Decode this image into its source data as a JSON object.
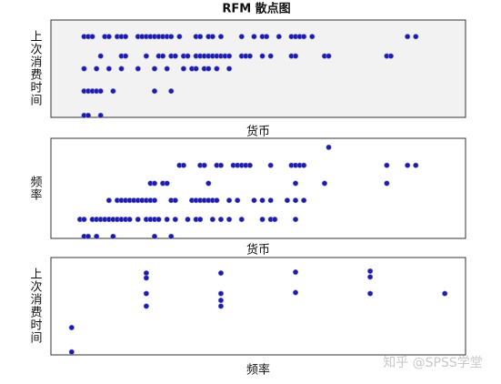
{
  "chart_data": [
    {
      "type": "scatter",
      "title": "RFM 散点图",
      "x_label": "货币",
      "y_label": "上次消费时间",
      "color": "#1c1ca8",
      "xlim": [
        0,
        100
      ],
      "ylim": [
        0,
        100
      ],
      "x": [
        8,
        9,
        10,
        13,
        14,
        16,
        17,
        18,
        21,
        22,
        23,
        24,
        25,
        26,
        27,
        28,
        29,
        31,
        35,
        36,
        38,
        39,
        41,
        46,
        49,
        51,
        52,
        55,
        58,
        59,
        60,
        61,
        63,
        86,
        88,
        12,
        17,
        18,
        23,
        26,
        27,
        29,
        30,
        32,
        33,
        35,
        36,
        37,
        38,
        39,
        40,
        41,
        42,
        43,
        46,
        47,
        48,
        51,
        53,
        58,
        59,
        66,
        67,
        81,
        82,
        8,
        11,
        14,
        17,
        21,
        25,
        28,
        32,
        34,
        35,
        37,
        38,
        40,
        43,
        8,
        9,
        10,
        11,
        12,
        15,
        25,
        29,
        8,
        9,
        12
      ],
      "y": [
        83,
        83,
        83,
        83,
        83,
        83,
        83,
        83,
        83,
        83,
        83,
        83,
        83,
        83,
        83,
        83,
        83,
        83,
        83,
        83,
        83,
        83,
        83,
        83,
        83,
        83,
        83,
        83,
        83,
        83,
        83,
        83,
        83,
        83,
        83,
        63,
        63,
        63,
        63,
        63,
        63,
        63,
        63,
        63,
        63,
        63,
        63,
        63,
        63,
        63,
        63,
        63,
        63,
        63,
        63,
        63,
        63,
        63,
        63,
        63,
        63,
        63,
        63,
        63,
        63,
        50,
        50,
        50,
        50,
        50,
        50,
        50,
        50,
        50,
        50,
        50,
        50,
        50,
        50,
        27,
        27,
        27,
        27,
        27,
        27,
        27,
        27,
        2,
        2,
        2
      ]
    },
    {
      "type": "scatter",
      "x_label": "货币",
      "y_label": "频率",
      "color": "#1c1ca8",
      "xlim": [
        0,
        100
      ],
      "ylim": [
        0,
        100
      ],
      "x": [
        67,
        31,
        32,
        36,
        37,
        40,
        41,
        44,
        45,
        46,
        47,
        48,
        53,
        58,
        59,
        60,
        61,
        81,
        86,
        88,
        24,
        25,
        27,
        28,
        38,
        59,
        66,
        81,
        14,
        16,
        17,
        18,
        19,
        20,
        21,
        22,
        23,
        24,
        25,
        29,
        30,
        34,
        35,
        36,
        37,
        38,
        39,
        40,
        43,
        45,
        49,
        51,
        53,
        57,
        59,
        61,
        7,
        8,
        10,
        11,
        12,
        13,
        14,
        15,
        16,
        17,
        18,
        19,
        21,
        23,
        24,
        25,
        26,
        28,
        30,
        33,
        35,
        36,
        39,
        41,
        43,
        46,
        51,
        53,
        54,
        59,
        8,
        9,
        11,
        15,
        25,
        29
      ],
      "y": [
        91,
        73,
        73,
        73,
        73,
        73,
        73,
        73,
        73,
        73,
        73,
        73,
        73,
        73,
        73,
        73,
        73,
        73,
        73,
        73,
        55,
        55,
        55,
        55,
        55,
        55,
        55,
        55,
        38,
        38,
        38,
        38,
        38,
        38,
        38,
        38,
        38,
        38,
        38,
        38,
        38,
        38,
        38,
        38,
        38,
        38,
        38,
        38,
        38,
        38,
        38,
        38,
        38,
        38,
        38,
        38,
        19,
        19,
        19,
        19,
        19,
        19,
        19,
        19,
        19,
        19,
        19,
        19,
        19,
        19,
        19,
        19,
        19,
        19,
        19,
        19,
        19,
        19,
        19,
        19,
        19,
        19,
        19,
        19,
        19,
        19,
        2,
        2,
        2,
        2,
        2,
        2
      ]
    },
    {
      "type": "scatter",
      "x_label": "频率",
      "y_label": "上次消费时间",
      "color": "#1c1ca8",
      "xlim": [
        0,
        100
      ],
      "ylim": [
        0,
        100
      ],
      "x": [
        23,
        23,
        23,
        23,
        41,
        41,
        41,
        41,
        59,
        59,
        77,
        77,
        77,
        95,
        5,
        5
      ],
      "y": [
        84,
        79,
        63,
        50,
        84,
        63,
        56,
        50,
        85,
        64,
        86,
        80,
        63,
        63,
        28,
        3
      ]
    }
  ],
  "watermark": "知乎 @SPSS学堂"
}
